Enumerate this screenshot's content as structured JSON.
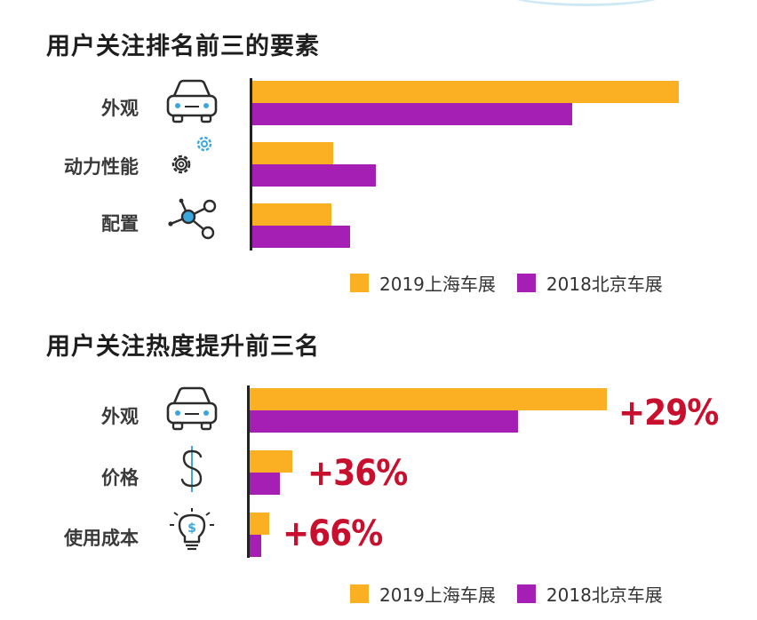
{
  "colors": {
    "series_2019": "#FBB023",
    "series_2018": "#A51FB5",
    "accent_red": "#C8102E",
    "icon_blue": "#3AA8DC"
  },
  "chart_data": [
    {
      "type": "bar",
      "orientation": "horizontal",
      "title": "用户关注排名前三的要素",
      "categories": [
        "外观",
        "动力性能",
        "配置"
      ],
      "icons": [
        "car-icon",
        "gears-icon",
        "network-nodes-icon"
      ],
      "series": [
        {
          "name": "2019上海车展",
          "values": [
            100,
            19,
            18.5
          ]
        },
        {
          "name": "2018北京车展",
          "values": [
            75,
            29,
            23
          ]
        }
      ],
      "xlim": [
        0,
        100
      ],
      "legend": "bottom-right"
    },
    {
      "type": "bar",
      "orientation": "horizontal",
      "title": "用户关注热度提升前三名",
      "categories": [
        "外观",
        "价格",
        "使用成本"
      ],
      "icons": [
        "car-icon",
        "dollar-icon",
        "lightbulb-dollar-icon"
      ],
      "series": [
        {
          "name": "2019上海车展",
          "values": [
            100,
            12,
            5.5
          ]
        },
        {
          "name": "2018北京车展",
          "values": [
            75,
            8.5,
            3.3
          ]
        }
      ],
      "annotations": [
        "+29%",
        "+36%",
        "+66%"
      ],
      "xlim": [
        0,
        100
      ],
      "legend": "bottom-right"
    }
  ]
}
